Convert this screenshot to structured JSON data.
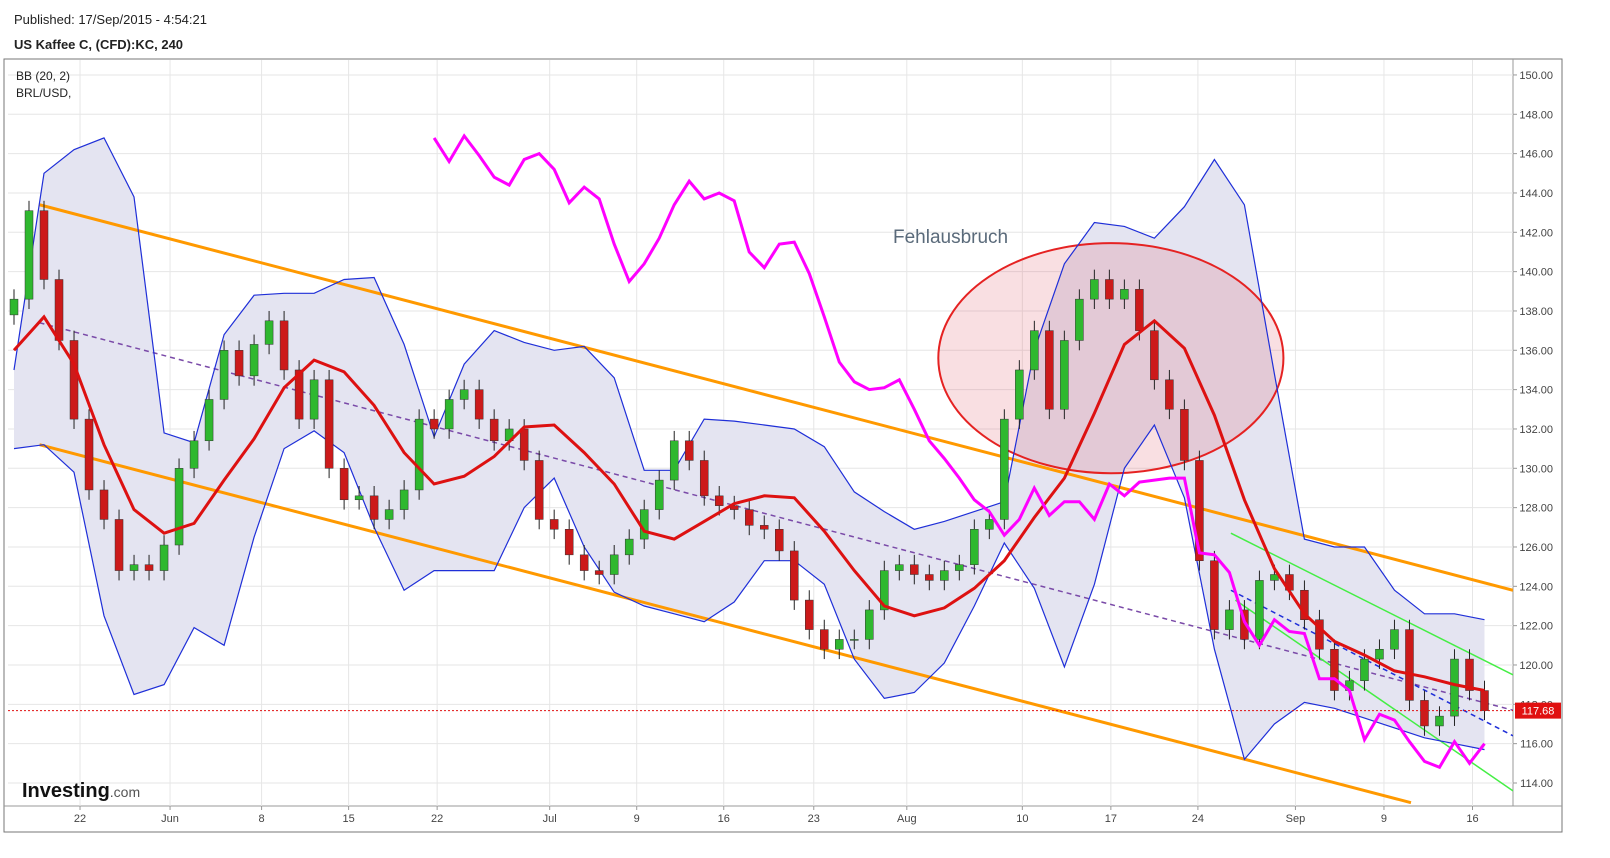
{
  "header": {
    "published": "Published: 17/Sep/2015 - 4:54:21",
    "symbol": "US Kaffee C, (CFD):KC, 240"
  },
  "brand": {
    "name": "Investing",
    "suffix": ".com"
  },
  "chart_data": {
    "type": "candlestick",
    "legend": [
      "BB (20, 2)",
      "BRL/USD,"
    ],
    "annotation": "Fehlausbruch",
    "up_color": "#2fb82f",
    "down_color": "#cc1a1a",
    "wick_color": "#222222",
    "grid": true,
    "xlim": [
      -0.4,
      99.9
    ],
    "xticks": [
      {
        "value": 4.4,
        "label": "22"
      },
      {
        "value": 10.4,
        "label": "Jun"
      },
      {
        "value": 16.5,
        "label": "8"
      },
      {
        "value": 22.3,
        "label": "15"
      },
      {
        "value": 28.2,
        "label": "22"
      },
      {
        "value": 35.7,
        "label": "Jul"
      },
      {
        "value": 41.5,
        "label": "9"
      },
      {
        "value": 47.3,
        "label": "16"
      },
      {
        "value": 53.3,
        "label": "23"
      },
      {
        "value": 59.5,
        "label": "Aug"
      },
      {
        "value": 67.2,
        "label": "10"
      },
      {
        "value": 73.1,
        "label": "17"
      },
      {
        "value": 78.9,
        "label": "24"
      },
      {
        "value": 85.4,
        "label": "Sep"
      },
      {
        "value": 91.3,
        "label": "9"
      },
      {
        "value": 97.2,
        "label": "16"
      }
    ],
    "ylim": [
      112.83,
      150.76
    ],
    "yticks": [
      {
        "value": 114,
        "label": "114.00"
      },
      {
        "value": 116,
        "label": "116.00"
      },
      {
        "value": 118,
        "label": "118.00"
      },
      {
        "value": 120,
        "label": "120.00"
      },
      {
        "value": 122,
        "label": "122.00"
      },
      {
        "value": 124,
        "label": "124.00"
      },
      {
        "value": 126,
        "label": "126.00"
      },
      {
        "value": 128,
        "label": "128.00"
      },
      {
        "value": 130,
        "label": "130.00"
      },
      {
        "value": 132,
        "label": "132.00"
      },
      {
        "value": 134,
        "label": "134.00"
      },
      {
        "value": 136,
        "label": "136.00"
      },
      {
        "value": 138,
        "label": "138.00"
      },
      {
        "value": 140,
        "label": "140.00"
      },
      {
        "value": 142,
        "label": "142.00"
      },
      {
        "value": 144,
        "label": "144.00"
      },
      {
        "value": 146,
        "label": "146.00"
      },
      {
        "value": 148,
        "label": "148.00"
      },
      {
        "value": 150,
        "label": "150.00"
      }
    ],
    "open": [
      137.8,
      138.6,
      143.1,
      139.6,
      136.5,
      132.5,
      128.9,
      127.4,
      124.8,
      125.1,
      124.8,
      126.1,
      130.0,
      131.4,
      133.5,
      136.0,
      134.7,
      136.3,
      137.5,
      135.0,
      132.5,
      134.5,
      130.0,
      128.4,
      128.6,
      127.4,
      127.9,
      128.9,
      132.5,
      132.0,
      133.5,
      134.0,
      132.5,
      131.4,
      132.0,
      130.4,
      127.4,
      126.9,
      125.6,
      124.8,
      124.6,
      125.6,
      126.4,
      127.9,
      129.4,
      131.4,
      130.4,
      128.6,
      128.1,
      127.9,
      127.1,
      126.9,
      125.8,
      123.3,
      121.8,
      120.8,
      121.3,
      121.3,
      122.8,
      124.8,
      125.1,
      124.6,
      124.3,
      124.8,
      125.1,
      126.9,
      127.4,
      132.5,
      135.0,
      137.0,
      133.0,
      136.5,
      138.6,
      139.6,
      138.6,
      139.1,
      137.0,
      134.5,
      133.0,
      130.4,
      125.3,
      121.8,
      122.8,
      121.3,
      124.3,
      124.6,
      123.8,
      122.3,
      120.8,
      118.7,
      119.2,
      120.3,
      120.8,
      121.8,
      118.2,
      116.9,
      117.4,
      120.3,
      118.7
    ],
    "high": [
      139.1,
      143.6,
      143.6,
      140.1,
      137.0,
      133.0,
      129.4,
      127.9,
      125.6,
      125.6,
      126.6,
      130.5,
      131.9,
      134.0,
      136.5,
      136.5,
      136.8,
      138.0,
      138.0,
      135.5,
      135.0,
      135.0,
      130.5,
      129.1,
      129.1,
      128.4,
      129.4,
      133.0,
      133.0,
      134.0,
      134.5,
      134.5,
      133.0,
      132.5,
      132.5,
      130.9,
      127.9,
      127.4,
      126.1,
      125.3,
      126.1,
      126.9,
      128.4,
      129.9,
      131.9,
      131.9,
      130.9,
      129.1,
      128.6,
      128.4,
      127.6,
      127.4,
      126.3,
      123.8,
      122.3,
      121.8,
      121.8,
      123.3,
      125.3,
      125.6,
      125.6,
      125.1,
      125.3,
      125.6,
      127.4,
      127.9,
      133.0,
      135.5,
      137.5,
      137.5,
      137.0,
      139.1,
      140.1,
      140.1,
      139.6,
      139.6,
      137.5,
      135.0,
      133.5,
      130.9,
      125.8,
      123.3,
      123.3,
      124.8,
      125.1,
      125.1,
      124.3,
      122.8,
      121.3,
      119.7,
      120.8,
      121.3,
      122.3,
      122.3,
      118.7,
      117.9,
      120.8,
      120.8,
      119.2
    ],
    "low": [
      137.3,
      138.1,
      139.1,
      136.0,
      132.0,
      128.4,
      126.9,
      124.3,
      124.3,
      124.3,
      124.3,
      125.6,
      129.5,
      130.9,
      133.0,
      134.2,
      134.2,
      135.8,
      134.5,
      132.0,
      132.0,
      129.5,
      127.9,
      127.9,
      126.9,
      126.9,
      127.4,
      128.4,
      131.5,
      131.5,
      133.0,
      132.0,
      130.9,
      130.9,
      129.9,
      126.9,
      126.4,
      125.1,
      124.3,
      124.1,
      124.1,
      125.1,
      125.9,
      127.4,
      128.9,
      129.9,
      128.1,
      127.6,
      127.4,
      126.6,
      126.4,
      125.3,
      122.8,
      121.3,
      120.3,
      120.3,
      120.8,
      120.8,
      122.3,
      124.3,
      124.1,
      123.8,
      123.8,
      124.3,
      124.6,
      126.4,
      126.9,
      132.0,
      134.5,
      132.5,
      132.5,
      136.0,
      138.1,
      138.1,
      138.1,
      136.5,
      134.0,
      132.5,
      129.9,
      124.8,
      121.3,
      121.3,
      120.8,
      120.8,
      123.8,
      123.3,
      121.8,
      120.3,
      118.2,
      118.2,
      118.7,
      119.8,
      120.3,
      117.7,
      116.4,
      116.4,
      116.9,
      118.2,
      117.2
    ],
    "close": [
      138.6,
      143.1,
      139.6,
      136.5,
      132.5,
      128.9,
      127.4,
      124.8,
      125.1,
      124.8,
      126.1,
      130.0,
      131.4,
      133.5,
      136.0,
      134.7,
      136.3,
      137.5,
      135.0,
      132.5,
      134.5,
      130.0,
      128.4,
      128.6,
      127.4,
      127.9,
      128.9,
      132.5,
      132.0,
      133.5,
      134.0,
      132.5,
      131.4,
      132.0,
      130.4,
      127.4,
      126.9,
      125.6,
      124.8,
      124.6,
      125.6,
      126.4,
      127.9,
      129.4,
      131.4,
      130.4,
      128.6,
      128.1,
      127.9,
      127.1,
      126.9,
      125.8,
      123.3,
      121.8,
      120.8,
      121.3,
      121.3,
      122.8,
      124.8,
      125.1,
      124.6,
      124.3,
      124.8,
      125.1,
      126.9,
      127.4,
      132.5,
      135.0,
      137.0,
      133.0,
      136.5,
      138.6,
      139.6,
      138.6,
      139.1,
      137.0,
      134.5,
      133.0,
      130.4,
      125.3,
      121.8,
      122.8,
      121.3,
      124.3,
      124.6,
      123.8,
      122.3,
      120.8,
      118.7,
      119.2,
      120.3,
      120.8,
      121.8,
      118.2,
      116.9,
      117.4,
      120.3,
      118.7,
      117.68
    ],
    "last_price_color": "#e01010",
    "bollinger": {
      "band_color": "#1f2fd8",
      "middle_color": "#dd1111",
      "fill": "#e4e4f1",
      "x": [
        0,
        2,
        4,
        6,
        8,
        10,
        12,
        14,
        16,
        18,
        20,
        22,
        24,
        26,
        28,
        30,
        32,
        34,
        36,
        38,
        40,
        42,
        44,
        46,
        48,
        50,
        52,
        54,
        56,
        58,
        60,
        62,
        64,
        66,
        68,
        70,
        72,
        74,
        76,
        78,
        80,
        82,
        84,
        86,
        88,
        90,
        92,
        94,
        96,
        98
      ],
      "upper": [
        135.0,
        145.0,
        146.2,
        146.8,
        143.8,
        131.8,
        131.3,
        136.8,
        138.8,
        138.9,
        138.9,
        139.6,
        139.7,
        136.3,
        131.6,
        135.3,
        137.0,
        136.4,
        136.0,
        136.2,
        134.6,
        129.9,
        129.9,
        132.5,
        132.4,
        132.2,
        132.0,
        131.1,
        128.8,
        127.8,
        126.9,
        127.3,
        127.8,
        128.3,
        136.0,
        140.4,
        142.5,
        142.3,
        141.7,
        143.3,
        145.7,
        143.4,
        134.8,
        126.4,
        126.0,
        126.0,
        123.8,
        122.6,
        122.6,
        122.3
      ],
      "middle": [
        136.0,
        137.7,
        135.3,
        131.2,
        127.9,
        126.7,
        127.2,
        129.4,
        131.5,
        134.1,
        135.5,
        134.9,
        133.2,
        130.8,
        129.2,
        129.6,
        130.6,
        132.1,
        132.2,
        130.8,
        129.2,
        126.8,
        126.4,
        127.3,
        128.2,
        128.6,
        128.5,
        126.8,
        124.8,
        123.0,
        122.5,
        122.9,
        123.9,
        125.3,
        127.5,
        129.5,
        132.8,
        136.3,
        137.5,
        136.1,
        132.7,
        128.4,
        124.9,
        122.6,
        121.2,
        120.5,
        119.7,
        119.4,
        119.0,
        118.7
      ],
      "lower": [
        131.0,
        131.2,
        129.8,
        122.5,
        118.5,
        119.0,
        121.9,
        121.0,
        126.5,
        131.0,
        131.9,
        130.8,
        127.0,
        123.8,
        124.8,
        124.8,
        124.8,
        128.0,
        129.5,
        126.0,
        123.7,
        123.0,
        122.6,
        122.2,
        123.2,
        125.3,
        125.3,
        124.1,
        120.3,
        118.3,
        118.6,
        120.1,
        123.0,
        126.2,
        123.9,
        119.9,
        124.1,
        130.0,
        132.2,
        128.5,
        120.8,
        115.2,
        117.0,
        118.1,
        117.8,
        117.3,
        116.8,
        116.3,
        116.0,
        115.7
      ]
    },
    "overlay": {
      "color": "#ff00ff",
      "x": [
        28,
        29,
        30,
        31,
        32,
        33,
        34,
        35,
        36,
        37,
        38,
        39,
        40,
        41,
        42,
        43,
        44,
        45,
        46,
        47,
        48,
        49,
        50,
        51,
        52,
        53,
        54,
        55,
        56,
        57,
        58,
        59,
        60,
        61,
        62,
        63,
        64,
        65,
        66,
        67,
        68,
        69,
        70,
        71,
        72,
        73,
        74,
        75,
        76,
        77,
        78,
        79,
        80,
        81,
        82,
        83,
        84,
        85,
        86,
        87,
        88,
        89,
        90,
        91,
        92,
        93,
        94,
        95,
        96,
        97,
        98
      ],
      "values": [
        146.8,
        145.6,
        146.9,
        145.9,
        144.8,
        144.4,
        145.7,
        146.0,
        145.2,
        143.5,
        144.3,
        143.7,
        141.4,
        139.5,
        140.4,
        141.7,
        143.4,
        144.6,
        143.7,
        144.0,
        143.6,
        141.0,
        140.2,
        141.4,
        141.5,
        139.9,
        137.7,
        135.4,
        134.4,
        134.0,
        134.1,
        134.5,
        133.0,
        131.4,
        130.5,
        129.5,
        128.4,
        127.8,
        126.6,
        127.4,
        129.0,
        127.6,
        128.3,
        128.3,
        127.4,
        129.2,
        128.6,
        129.3,
        129.4,
        129.5,
        129.5,
        125.7,
        125.6,
        124.7,
        122.2,
        121.0,
        122.3,
        121.7,
        121.6,
        119.3,
        119.3,
        118.7,
        116.2,
        117.5,
        117.2,
        116.1,
        115.1,
        114.8,
        116.1,
        115.0,
        116.0
      ]
    },
    "trendlines": [
      {
        "color": "#ff9900",
        "width": 3,
        "dashed": false,
        "points": [
          [
            1.7,
            143.4
          ],
          [
            99.9,
            123.8
          ]
        ]
      },
      {
        "color": "#ff9900",
        "width": 3,
        "dashed": false,
        "points": [
          [
            1.7,
            131.2
          ],
          [
            93.1,
            113.0
          ]
        ]
      },
      {
        "color": "#7a4aa8",
        "width": 1.5,
        "dashed": true,
        "points": [
          [
            1.7,
            137.4
          ],
          [
            99.9,
            117.7
          ]
        ]
      },
      {
        "color": "#44ee44",
        "width": 1.5,
        "dashed": false,
        "points": [
          [
            81.1,
            126.7
          ],
          [
            99.9,
            119.5
          ]
        ]
      },
      {
        "color": "#44ee44",
        "width": 1.5,
        "dashed": false,
        "points": [
          [
            81.4,
            123.3
          ],
          [
            99.9,
            113.6
          ]
        ]
      },
      {
        "color": "#1f2fd8",
        "width": 1.5,
        "dashed": true,
        "points": [
          [
            81.1,
            123.8
          ],
          [
            99.9,
            116.4
          ]
        ]
      }
    ],
    "ellipse": {
      "cx": 73.1,
      "cy": 135.6,
      "rx": 11.5,
      "ry": 5.85,
      "stroke": "#e52222",
      "fill": "rgba(220,80,95,0.18)"
    }
  }
}
